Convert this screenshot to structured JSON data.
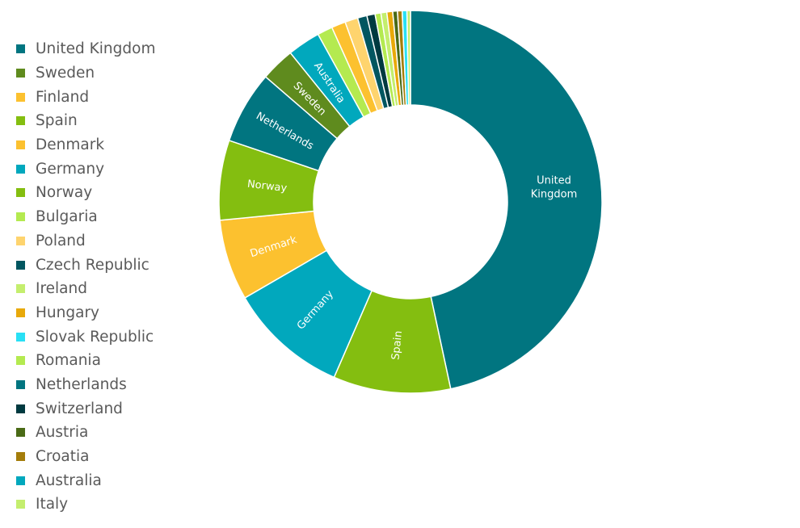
{
  "chart_data": {
    "type": "pie",
    "subtype": "donut",
    "title": "",
    "legend_position": "left",
    "slices": [
      {
        "label": "United Kingdom",
        "value": 47.1,
        "color": "#017580",
        "show_label": true,
        "label_lines": [
          "United",
          "Kingdom"
        ]
      },
      {
        "label": "Spain",
        "value": 10.0,
        "color": "#84BE10",
        "show_label": true,
        "label_lines": [
          "Spain"
        ]
      },
      {
        "label": "Germany",
        "value": 10.2,
        "color": "#01A8BD",
        "show_label": true,
        "label_lines": [
          "Germany"
        ]
      },
      {
        "label": "Denmark",
        "value": 6.9,
        "color": "#FCC12F",
        "show_label": true,
        "label_lines": [
          "Denmark"
        ]
      },
      {
        "label": "Norway",
        "value": 6.8,
        "color": "#84BE10",
        "show_label": true,
        "label_lines": [
          "Norway"
        ]
      },
      {
        "label": "Netherlands",
        "value": 6.2,
        "color": "#017580",
        "show_label": true,
        "label_lines": [
          "Netherlands"
        ]
      },
      {
        "label": "Sweden",
        "value": 2.9,
        "color": "#5F8B1E",
        "show_label": true,
        "label_lines": [
          "Sweden"
        ]
      },
      {
        "label": "Australia",
        "value": 2.8,
        "color": "#01A8BD",
        "show_label": true,
        "label_lines": [
          "Australia"
        ]
      },
      {
        "label": "Romania",
        "value": 1.3,
        "color": "#B4EA50",
        "show_label": false
      },
      {
        "label": "Finland",
        "value": 1.2,
        "color": "#FCC12F",
        "show_label": false
      },
      {
        "label": "Poland",
        "value": 1.1,
        "color": "#FED46E",
        "show_label": false
      },
      {
        "label": "Czech Republic",
        "value": 0.8,
        "color": "#015660",
        "show_label": false
      },
      {
        "label": "Switzerland",
        "value": 0.7,
        "color": "#003A40",
        "show_label": false
      },
      {
        "label": "Bulgaria",
        "value": 0.5,
        "color": "#B4EA50",
        "show_label": false
      },
      {
        "label": "Ireland",
        "value": 0.5,
        "color": "#C4EE6E",
        "show_label": false
      },
      {
        "label": "Hungary",
        "value": 0.5,
        "color": "#E8A90A",
        "show_label": false
      },
      {
        "label": "Austria",
        "value": 0.4,
        "color": "#4A6A16",
        "show_label": false
      },
      {
        "label": "Croatia",
        "value": 0.4,
        "color": "#A47D0A",
        "show_label": false
      },
      {
        "label": "Slovak Republic",
        "value": 0.4,
        "color": "#29E0F5",
        "show_label": false
      },
      {
        "label": "Italy",
        "value": 0.3,
        "color": "#C4EE6E",
        "show_label": false
      }
    ],
    "legend": [
      {
        "label": "United Kingdom",
        "color": "#017580"
      },
      {
        "label": "Sweden",
        "color": "#5F8B1E"
      },
      {
        "label": "Finland",
        "color": "#FCC12F"
      },
      {
        "label": "Spain",
        "color": "#84BE10"
      },
      {
        "label": "Denmark",
        "color": "#FCC12F"
      },
      {
        "label": "Germany",
        "color": "#01A8BD"
      },
      {
        "label": "Norway",
        "color": "#84BE10"
      },
      {
        "label": "Bulgaria",
        "color": "#B4EA50"
      },
      {
        "label": "Poland",
        "color": "#FED46E"
      },
      {
        "label": "Czech Republic",
        "color": "#015660"
      },
      {
        "label": "Ireland",
        "color": "#C4EE6E"
      },
      {
        "label": "Hungary",
        "color": "#E8A90A"
      },
      {
        "label": "Slovak Republic",
        "color": "#29E0F5"
      },
      {
        "label": "Romania",
        "color": "#B4EA50"
      },
      {
        "label": "Netherlands",
        "color": "#017580"
      },
      {
        "label": "Switzerland",
        "color": "#003A40"
      },
      {
        "label": "Austria",
        "color": "#4A6A16"
      },
      {
        "label": "Croatia",
        "color": "#A47D0A"
      },
      {
        "label": "Australia",
        "color": "#01A8BD"
      },
      {
        "label": "Italy",
        "color": "#C4EE6E"
      }
    ]
  }
}
